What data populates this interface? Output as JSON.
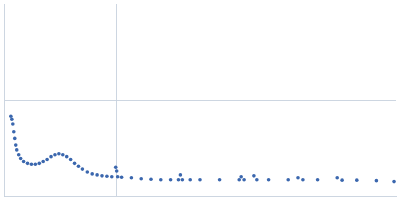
{
  "chart_data": {
    "type": "scatter",
    "color": "#3b67ae",
    "marker": "circle",
    "xlim": [
      0,
      0.4
    ],
    "xticks": [
      0.115
    ],
    "ylim": [
      0,
      2
    ],
    "yticks": [
      1
    ],
    "grid": true,
    "tick_labels": false,
    "x": [
      0.007,
      0.008,
      0.009,
      0.01,
      0.011,
      0.012,
      0.013,
      0.015,
      0.017,
      0.02,
      0.024,
      0.028,
      0.032,
      0.036,
      0.04,
      0.044,
      0.048,
      0.052,
      0.056,
      0.06,
      0.064,
      0.068,
      0.072,
      0.076,
      0.08,
      0.085,
      0.09,
      0.095,
      0.1,
      0.105,
      0.11,
      0.114,
      0.115,
      0.116,
      0.12,
      0.13,
      0.14,
      0.15,
      0.16,
      0.17,
      0.178,
      0.18,
      0.182,
      0.19,
      0.2,
      0.22,
      0.24,
      0.242,
      0.245,
      0.255,
      0.258,
      0.27,
      0.29,
      0.3,
      0.305,
      0.32,
      0.34,
      0.345,
      0.36,
      0.38,
      0.398
    ],
    "values": [
      0.83,
      0.8,
      0.75,
      0.67,
      0.6,
      0.53,
      0.48,
      0.43,
      0.39,
      0.36,
      0.34,
      0.33,
      0.33,
      0.34,
      0.36,
      0.38,
      0.41,
      0.43,
      0.44,
      0.43,
      0.41,
      0.38,
      0.34,
      0.31,
      0.28,
      0.25,
      0.23,
      0.22,
      0.21,
      0.205,
      0.2,
      0.3,
      0.26,
      0.2,
      0.195,
      0.19,
      0.18,
      0.175,
      0.17,
      0.17,
      0.17,
      0.22,
      0.17,
      0.17,
      0.17,
      0.17,
      0.17,
      0.2,
      0.17,
      0.21,
      0.17,
      0.17,
      0.17,
      0.19,
      0.17,
      0.17,
      0.19,
      0.165,
      0.165,
      0.16,
      0.15
    ]
  }
}
